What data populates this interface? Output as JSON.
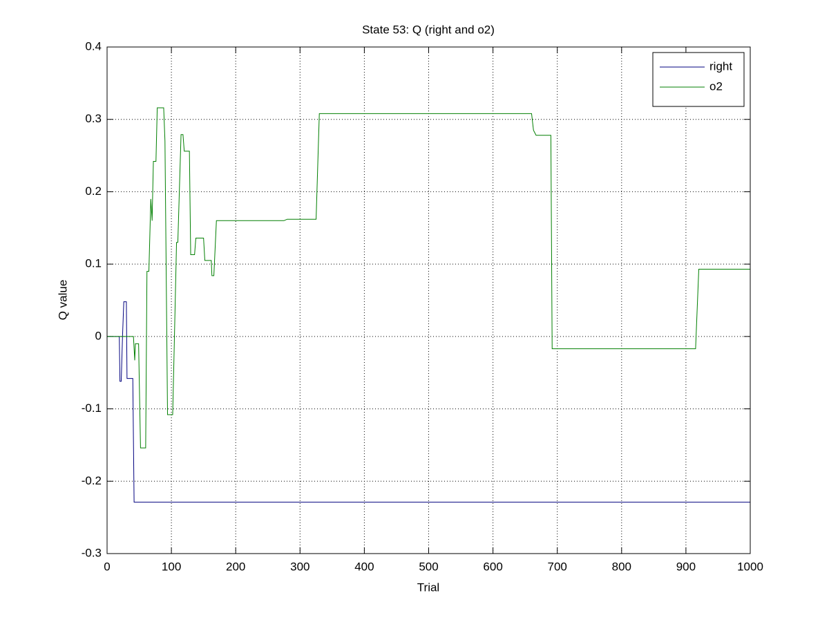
{
  "chart_data": {
    "type": "line",
    "title": "State 53: Q (right and o2)",
    "x_label": "Trial",
    "y_label": "Q value",
    "xlim": [
      0,
      1000
    ],
    "xticks": [
      0,
      100,
      200,
      300,
      400,
      500,
      600,
      700,
      800,
      900,
      1000
    ],
    "ylim": [
      -0.3,
      0.4
    ],
    "yticks": [
      -0.3,
      -0.2,
      -0.1,
      0,
      0.1,
      0.2,
      0.3,
      0.4
    ],
    "grid": true,
    "legend": "upper right",
    "series": [
      {
        "name": "right",
        "color": "#00007f",
        "x": [
          0,
          19,
          20,
          22,
          24,
          26,
          30,
          31,
          40,
          42,
          1000
        ],
        "values": [
          0,
          0,
          -0.062,
          -0.062,
          0,
          0.048,
          0.048,
          -0.058,
          -0.058,
          -0.229,
          -0.229
        ]
      },
      {
        "name": "o2",
        "color": "#007f00",
        "x": [
          0,
          41,
          43,
          44,
          49,
          52,
          60,
          62,
          65,
          68,
          70,
          72,
          76,
          78,
          88,
          90,
          94,
          102,
          104,
          108,
          110,
          115,
          118,
          120,
          128,
          130,
          136,
          138,
          150,
          152,
          162,
          163,
          166,
          170,
          275,
          280,
          325,
          330,
          660,
          663,
          667,
          690,
          692,
          915,
          920,
          1000
        ],
        "values": [
          0,
          0,
          -0.033,
          -0.01,
          -0.01,
          -0.154,
          -0.154,
          0.09,
          0.09,
          0.19,
          0.16,
          0.242,
          0.242,
          0.316,
          0.316,
          0.27,
          -0.108,
          -0.108,
          -0.03,
          0.13,
          0.13,
          0.279,
          0.279,
          0.256,
          0.256,
          0.113,
          0.113,
          0.136,
          0.136,
          0.105,
          0.105,
          0.084,
          0.084,
          0.16,
          0.16,
          0.162,
          0.162,
          0.308,
          0.308,
          0.285,
          0.278,
          0.278,
          -0.017,
          -0.017,
          0.093,
          0.093
        ]
      }
    ]
  }
}
